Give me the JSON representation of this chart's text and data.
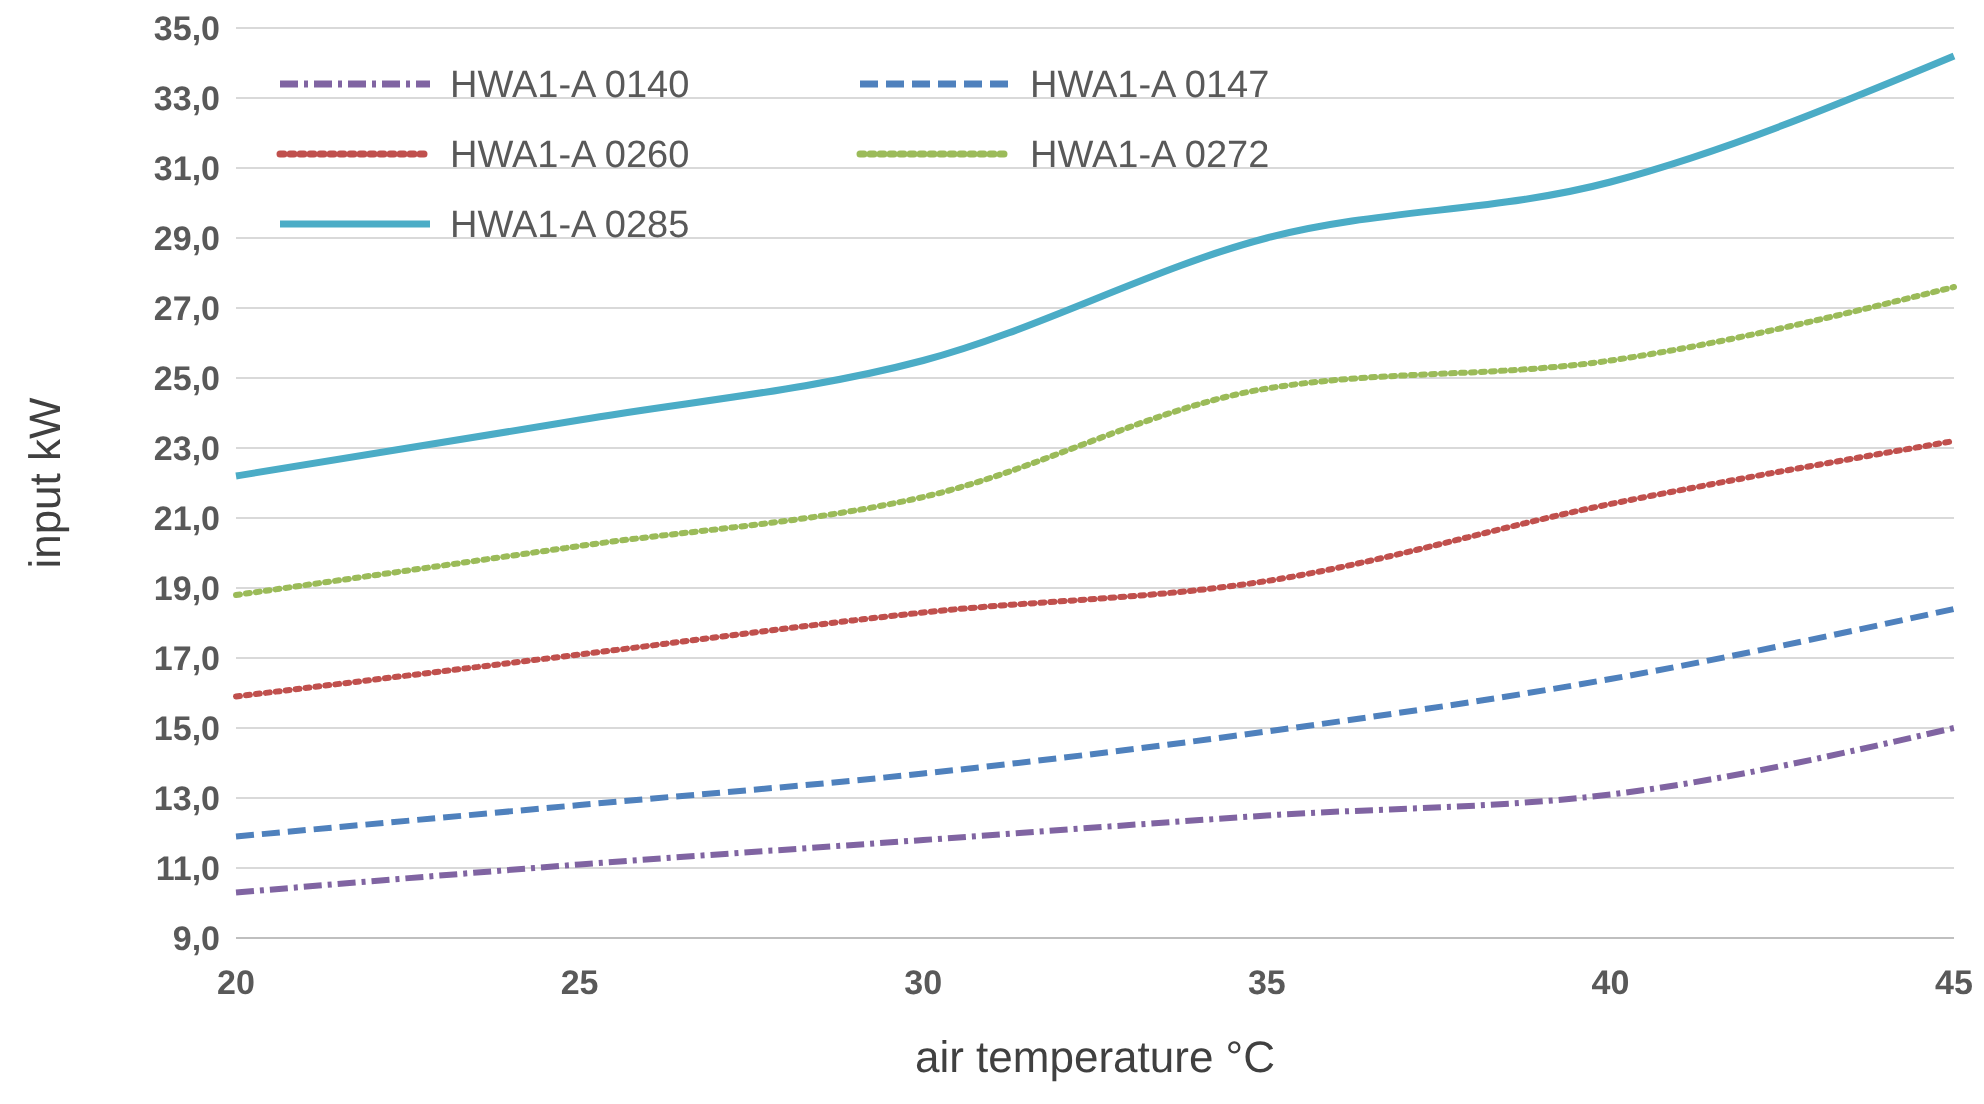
{
  "chart_data": {
    "type": "line",
    "xlabel": "air temperature °C",
    "ylabel": "input kW",
    "x": [
      20,
      25,
      30,
      35,
      40,
      45
    ],
    "xlim": [
      20,
      45
    ],
    "xticks": [
      20,
      25,
      30,
      35,
      40,
      45
    ],
    "ylim": [
      9,
      35
    ],
    "yticks": [
      {
        "value": 9,
        "label": "9,0"
      },
      {
        "value": 11,
        "label": "11,0"
      },
      {
        "value": 13,
        "label": "13,0"
      },
      {
        "value": 15,
        "label": "15,0"
      },
      {
        "value": 17,
        "label": "17,0"
      },
      {
        "value": 19,
        "label": "19,0"
      },
      {
        "value": 21,
        "label": "21,0"
      },
      {
        "value": 23,
        "label": "23,0"
      },
      {
        "value": 25,
        "label": "25,0"
      },
      {
        "value": 27,
        "label": "27,0"
      },
      {
        "value": 29,
        "label": "29,0"
      },
      {
        "value": 31,
        "label": "31,0"
      },
      {
        "value": 33,
        "label": "33,0"
      },
      {
        "value": 35,
        "label": "35,0"
      }
    ],
    "grid": "y",
    "legend": "top left",
    "series": [
      {
        "name": "HWA1-A 0140",
        "color": "#8064a2",
        "line_style": "dashdot",
        "values": [
          10.3,
          11.1,
          11.8,
          12.5,
          13.1,
          15.0
        ]
      },
      {
        "name": "HWA1-A 0147",
        "color": "#4f81bd",
        "line_style": "dashed",
        "values": [
          11.9,
          12.8,
          13.7,
          14.9,
          16.4,
          18.4
        ]
      },
      {
        "name": "HWA1-A 0260",
        "color": "#c0504d",
        "line_style": "dotted",
        "values": [
          15.9,
          17.1,
          18.3,
          19.2,
          21.4,
          23.2
        ]
      },
      {
        "name": "HWA1-A 0272",
        "color": "#9bbb59",
        "line_style": "dotted",
        "values": [
          18.8,
          20.2,
          21.6,
          24.7,
          25.5,
          27.6
        ]
      },
      {
        "name": "HWA1-A 0285",
        "color": "#4bacc6",
        "line_style": "solid",
        "values": [
          22.2,
          23.8,
          25.5,
          29.0,
          30.6,
          34.2
        ]
      }
    ]
  }
}
